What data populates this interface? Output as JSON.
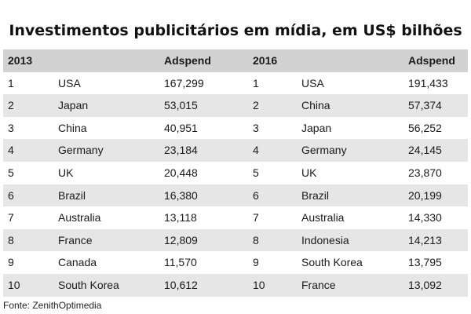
{
  "chart_data": {
    "type": "table",
    "title": "Investimentos publicitários em mídia, em US$ bilhões",
    "source": "Fonte: ZenithOptimedia",
    "tables": [
      {
        "year": "2013",
        "value_header": "Adspend",
        "rows": [
          {
            "rank": "1",
            "country": "USA",
            "adspend": "167,299"
          },
          {
            "rank": "2",
            "country": "Japan",
            "adspend": "53,015"
          },
          {
            "rank": "3",
            "country": "China",
            "adspend": "40,951"
          },
          {
            "rank": "4",
            "country": "Germany",
            "adspend": "23,184"
          },
          {
            "rank": "5",
            "country": "UK",
            "adspend": "20,448"
          },
          {
            "rank": "6",
            "country": "Brazil",
            "adspend": "16,380"
          },
          {
            "rank": "7",
            "country": "Australia",
            "adspend": "13,118"
          },
          {
            "rank": "8",
            "country": "France",
            "adspend": "12,809"
          },
          {
            "rank": "9",
            "country": "Canada",
            "adspend": "11,570"
          },
          {
            "rank": "10",
            "country": "South Korea",
            "adspend": "10,612"
          }
        ]
      },
      {
        "year": "2016",
        "value_header": "Adspend",
        "rows": [
          {
            "rank": "1",
            "country": "USA",
            "adspend": "191,433"
          },
          {
            "rank": "2",
            "country": "China",
            "adspend": "57,374"
          },
          {
            "rank": "3",
            "country": "Japan",
            "adspend": "56,252"
          },
          {
            "rank": "4",
            "country": "Germany",
            "adspend": "24,145"
          },
          {
            "rank": "5",
            "country": "UK",
            "adspend": "23,870"
          },
          {
            "rank": "6",
            "country": "Brazil",
            "adspend": "20,199"
          },
          {
            "rank": "7",
            "country": "Australia",
            "adspend": "14,330"
          },
          {
            "rank": "8",
            "country": "Indonesia",
            "adspend": "14,213"
          },
          {
            "rank": "9",
            "country": "South Korea",
            "adspend": "13,795"
          },
          {
            "rank": "10",
            "country": "France",
            "adspend": "13,092"
          }
        ]
      }
    ],
    "colors": {
      "header_background": "#d2d2d2",
      "band_background": "#e6e6e6",
      "plain_background": "#ffffff"
    }
  }
}
